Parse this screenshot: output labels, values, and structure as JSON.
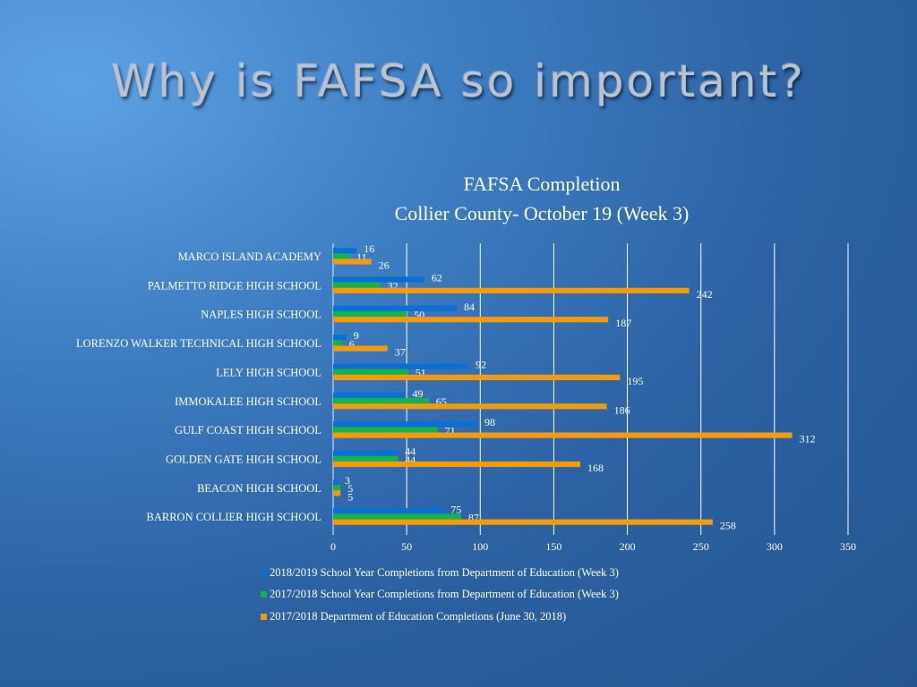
{
  "slide": {
    "title": "Why is FAFSA so important?"
  },
  "chart_data": {
    "type": "bar",
    "orientation": "horizontal",
    "title": [
      "FAFSA Completion",
      "Collier County- October 19 (Week 3)"
    ],
    "xlabel": "",
    "ylabel": "",
    "xlim": [
      0,
      350
    ],
    "x_ticks": [
      0,
      50,
      100,
      150,
      200,
      250,
      300,
      350
    ],
    "grid": true,
    "legend_position": "bottom",
    "categories": [
      "MARCO ISLAND ACADEMY",
      "PALMETTO RIDGE HIGH SCHOOL",
      "NAPLES HIGH SCHOOL",
      "LORENZO WALKER TECHNICAL HIGH SCHOOL",
      "LELY HIGH SCHOOL",
      "IMMOKALEE HIGH SCHOOL",
      "GULF COAST HIGH SCHOOL",
      "GOLDEN GATE HIGH SCHOOL",
      "BEACON HIGH SCHOOL",
      "BARRON COLLIER HIGH SCHOOL"
    ],
    "series": [
      {
        "name": "2018/2019 School Year Completions from Department of Education (Week 3)",
        "color": "#0b6fd6",
        "values": [
          16,
          62,
          84,
          9,
          92,
          49,
          98,
          44,
          3,
          75
        ]
      },
      {
        "name": "2017/2018 School Year Completions from Department of Education (Week 3)",
        "color": "#16b24a",
        "values": [
          11,
          32,
          50,
          6,
          51,
          65,
          71,
          44,
          5,
          87
        ]
      },
      {
        "name": "2017/2018 Department of Education Completions (June 30, 2018)",
        "color": "#f59a0c",
        "values": [
          26,
          242,
          187,
          37,
          195,
          186,
          312,
          168,
          5,
          258
        ]
      }
    ]
  }
}
